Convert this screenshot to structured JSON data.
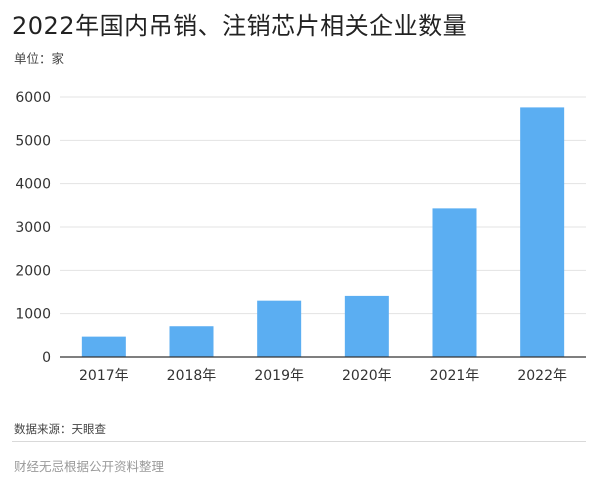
{
  "chart_data": {
    "type": "bar",
    "title": "2022年国内吊销、注销芯片相关企业数量",
    "unit_label": "单位：家",
    "categories": [
      "2017年",
      "2018年",
      "2019年",
      "2020年",
      "2021年",
      "2022年"
    ],
    "values": [
      470,
      710,
      1300,
      1410,
      3430,
      5760
    ],
    "ylim": [
      0,
      6000
    ],
    "yticks": [
      0,
      1000,
      2000,
      3000,
      4000,
      5000,
      6000
    ],
    "grid": true,
    "bar_color": "#5baef2",
    "source": "数据来源：天眼查",
    "footer": "财经无忌根据公开资料整理"
  }
}
